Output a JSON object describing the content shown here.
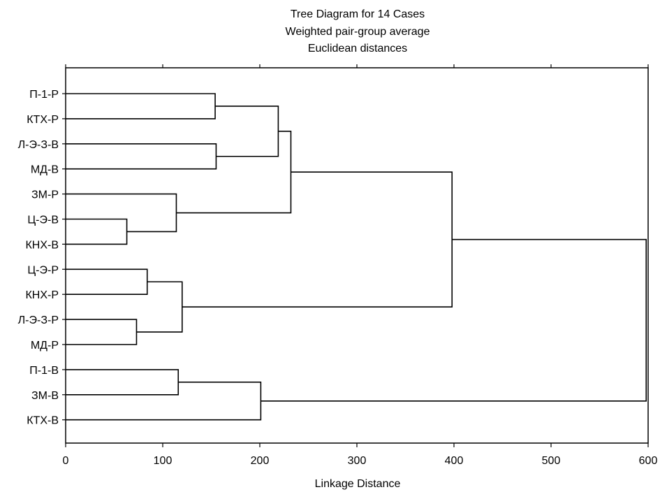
{
  "chart_data": {
    "type": "dendrogram",
    "title": "Tree Diagram for 14 Cases",
    "subtitle_lines": [
      "Weighted pair-group average",
      "Euclidean distances"
    ],
    "xlabel": "Linkage Distance",
    "ylabel": "",
    "xlim": [
      0,
      600
    ],
    "x_ticks": [
      0,
      100,
      200,
      300,
      400,
      500,
      600
    ],
    "grid": false,
    "cases": [
      "П-1-Р",
      "КТХ-Р",
      "Л-Э-З-В",
      "МД-В",
      "ЗМ-Р",
      "Ц-Э-В",
      "КНХ-В",
      "Ц-Э-Р",
      "КНХ-Р",
      "Л-Э-З-Р",
      "МД-Р",
      "П-1-В",
      "ЗМ-В",
      "КТХ-В"
    ],
    "merges": [
      {
        "a": "Ц-Э-В",
        "b": "КНХ-В",
        "distance": 63
      },
      {
        "a": "Л-Э-З-Р",
        "b": "МД-Р",
        "distance": 73
      },
      {
        "a": "Ц-Э-Р",
        "b": "КНХ-Р",
        "distance": 84
      },
      {
        "a": "ЗМ-Р",
        "b": "Ц-Э-В+КНХ-В",
        "distance": 114
      },
      {
        "a": "П-1-В",
        "b": "ЗМ-В",
        "distance": 116
      },
      {
        "a": "Ц-Э-Р+КНХ-Р",
        "b": "Л-Э-З-Р+МД-Р",
        "distance": 120
      },
      {
        "a": "П-1-Р",
        "b": "КТХ-Р",
        "distance": 154
      },
      {
        "a": "Л-Э-З-В",
        "b": "МД-В",
        "distance": 155
      },
      {
        "a": "П-1-В+ЗМ-В",
        "b": "КТХ-В",
        "distance": 201
      },
      {
        "a": "П-1-Р+КТХ-Р",
        "b": "Л-Э-З-В+МД-В",
        "distance": 219
      },
      {
        "a": "(П-1-Р..МД-В)",
        "b": "(ЗМ-Р..КНХ-В)",
        "distance": 232
      },
      {
        "a": "(П-1-Р..КНХ-В)",
        "b": "(Ц-Э-Р..МД-Р)",
        "distance": 398
      },
      {
        "a": "(П-1-Р..МД-Р)",
        "b": "(П-1-В..КТХ-В)",
        "distance": 598
      }
    ]
  }
}
